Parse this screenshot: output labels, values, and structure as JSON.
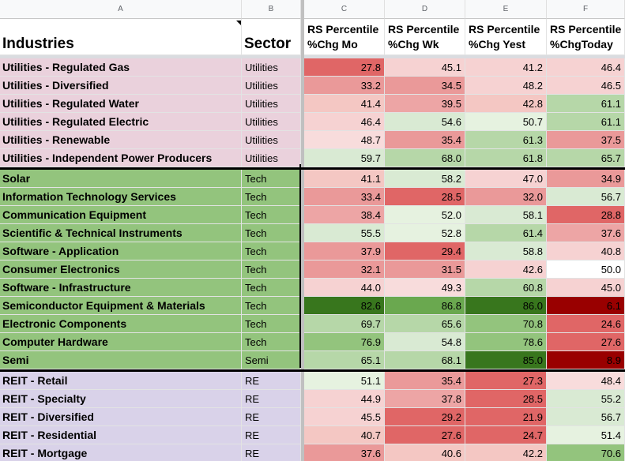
{
  "columns": [
    "A",
    "B",
    "C",
    "D",
    "E",
    "F"
  ],
  "headers": {
    "industries": "Industries",
    "sector": "Sector",
    "c_line1": "RS Percentile",
    "c_line2": "%Chg Mo",
    "d_line1": "RS Percentile",
    "d_line2": "%Chg Wk",
    "e_line1": "RS Percentile",
    "e_line2": "%Chg Yest",
    "f_line1": "RS Percentile",
    "f_line2": "%ChgToday"
  },
  "group_colors": {
    "Utilities": "#ead1dc",
    "Tech": "#93c47d",
    "RE": "#d9d2e9"
  },
  "rows": [
    {
      "industry": "Utilities - Regulated Gas",
      "sector": "Utilities",
      "group": "Utilities",
      "values": [
        "27.8",
        "45.1",
        "41.2",
        "46.4"
      ],
      "colors": [
        "#e06666",
        "#f6d2d2",
        "#f6d2d2",
        "#f6d2d2"
      ]
    },
    {
      "industry": "Utilities - Diversified",
      "sector": "Utilities",
      "group": "Utilities",
      "values": [
        "33.2",
        "34.5",
        "48.2",
        "46.5"
      ],
      "colors": [
        "#ea9999",
        "#ea9999",
        "#f6d2d2",
        "#f6d2d2"
      ]
    },
    {
      "industry": "Utilities - Regulated Water",
      "sector": "Utilities",
      "group": "Utilities",
      "values": [
        "41.4",
        "39.5",
        "42.8",
        "61.1"
      ],
      "colors": [
        "#f4c7c3",
        "#eda5a5",
        "#f4c7c3",
        "#b6d7a8"
      ]
    },
    {
      "industry": "Utilities - Regulated Electric",
      "sector": "Utilities",
      "group": "Utilities",
      "values": [
        "46.4",
        "54.6",
        "50.7",
        "61.1"
      ],
      "colors": [
        "#f6d2d2",
        "#d9ead3",
        "#e6f2e0",
        "#b6d7a8"
      ]
    },
    {
      "industry": "Utilities - Renewable",
      "sector": "Utilities",
      "group": "Utilities",
      "values": [
        "48.7",
        "35.4",
        "61.3",
        "37.5"
      ],
      "colors": [
        "#f8dcdc",
        "#ea9999",
        "#b6d7a8",
        "#ea9999"
      ]
    },
    {
      "industry": "Utilities - Independent Power Producers",
      "sector": "Utilities",
      "group": "Utilities",
      "values": [
        "59.7",
        "68.0",
        "61.8",
        "65.7"
      ],
      "colors": [
        "#d9ead3",
        "#b6d7a8",
        "#b6d7a8",
        "#b6d7a8"
      ]
    },
    {
      "industry": "Solar",
      "sector": "Tech",
      "group": "Tech",
      "values": [
        "41.1",
        "58.2",
        "47.0",
        "34.9"
      ],
      "colors": [
        "#f4c7c3",
        "#d9ead3",
        "#f6d2d2",
        "#ea9999"
      ]
    },
    {
      "industry": "Information Technology Services",
      "sector": "Tech",
      "group": "Tech",
      "values": [
        "33.4",
        "28.5",
        "32.0",
        "56.7"
      ],
      "colors": [
        "#ea9999",
        "#e06666",
        "#ea9999",
        "#d9ead3"
      ]
    },
    {
      "industry": "Communication Equipment",
      "sector": "Tech",
      "group": "Tech",
      "values": [
        "38.4",
        "52.0",
        "58.1",
        "28.8"
      ],
      "colors": [
        "#eda5a5",
        "#e6f2e0",
        "#d9ead3",
        "#e06666"
      ]
    },
    {
      "industry": "Scientific & Technical Instruments",
      "sector": "Tech",
      "group": "Tech",
      "values": [
        "55.5",
        "52.8",
        "61.4",
        "37.6"
      ],
      "colors": [
        "#d9ead3",
        "#e6f2e0",
        "#b6d7a8",
        "#eda5a5"
      ]
    },
    {
      "industry": "Software - Application",
      "sector": "Tech",
      "group": "Tech",
      "values": [
        "37.9",
        "29.4",
        "58.8",
        "40.8"
      ],
      "colors": [
        "#ea9999",
        "#e06666",
        "#d9ead3",
        "#f6d2d2"
      ]
    },
    {
      "industry": "Consumer Electronics",
      "sector": "Tech",
      "group": "Tech",
      "values": [
        "32.1",
        "31.5",
        "42.6",
        "50.0"
      ],
      "colors": [
        "#ea9999",
        "#ea9999",
        "#f6d2d2",
        "#ffffff"
      ]
    },
    {
      "industry": "Software - Infrastructure",
      "sector": "Tech",
      "group": "Tech",
      "values": [
        "44.0",
        "49.3",
        "60.8",
        "45.0"
      ],
      "colors": [
        "#f6d2d2",
        "#f8dcdc",
        "#b6d7a8",
        "#f6d2d2"
      ]
    },
    {
      "industry": "Semiconductor Equipment & Materials",
      "sector": "Tech",
      "group": "Tech",
      "values": [
        "82.6",
        "86.8",
        "86.0",
        "6.1"
      ],
      "colors": [
        "#38761d",
        "#6aa84f",
        "#38761d",
        "#990000"
      ]
    },
    {
      "industry": "Electronic Components",
      "sector": "Tech",
      "group": "Tech",
      "values": [
        "69.7",
        "65.6",
        "70.8",
        "24.6"
      ],
      "colors": [
        "#b6d7a8",
        "#b6d7a8",
        "#93c47d",
        "#e06666"
      ]
    },
    {
      "industry": "Computer Hardware",
      "sector": "Tech",
      "group": "Tech",
      "values": [
        "76.9",
        "54.8",
        "78.6",
        "27.6"
      ],
      "colors": [
        "#93c47d",
        "#d9ead3",
        "#93c47d",
        "#e06666"
      ]
    },
    {
      "industry": "Semi",
      "sector": "Semi",
      "group": "Tech",
      "values": [
        "65.1",
        "68.1",
        "85.0",
        "8.9"
      ],
      "colors": [
        "#b6d7a8",
        "#b6d7a8",
        "#38761d",
        "#990000"
      ]
    },
    {
      "industry": "REIT - Retail",
      "sector": "RE",
      "group": "RE",
      "values": [
        "51.1",
        "35.4",
        "27.3",
        "48.4"
      ],
      "colors": [
        "#e6f2e0",
        "#ea9999",
        "#e06666",
        "#f8dcdc"
      ]
    },
    {
      "industry": "REIT - Specialty",
      "sector": "RE",
      "group": "RE",
      "values": [
        "44.9",
        "37.8",
        "28.5",
        "55.2"
      ],
      "colors": [
        "#f6d2d2",
        "#eda5a5",
        "#e06666",
        "#d9ead3"
      ]
    },
    {
      "industry": "REIT - Diversified",
      "sector": "RE",
      "group": "RE",
      "values": [
        "45.5",
        "29.2",
        "21.9",
        "56.7"
      ],
      "colors": [
        "#f6d2d2",
        "#e06666",
        "#e06666",
        "#d9ead3"
      ]
    },
    {
      "industry": "REIT - Residential",
      "sector": "RE",
      "group": "RE",
      "values": [
        "40.7",
        "27.6",
        "24.7",
        "51.4"
      ],
      "colors": [
        "#f4c7c3",
        "#e06666",
        "#e06666",
        "#e6f2e0"
      ]
    },
    {
      "industry": "REIT - Mortgage",
      "sector": "RE",
      "group": "RE",
      "values": [
        "37.6",
        "40.6",
        "42.2",
        "70.6"
      ],
      "colors": [
        "#ea9999",
        "#f4c7c3",
        "#f4c7c3",
        "#93c47d"
      ]
    }
  ]
}
